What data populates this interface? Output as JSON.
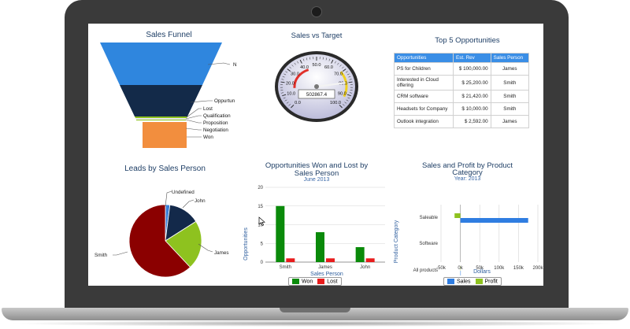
{
  "colors": {
    "frame": "#3a3a3a",
    "won": "#0a8a0a",
    "lost": "#e81c1c",
    "sales": "#2f7de1",
    "profit": "#8ec21f",
    "funnel": [
      "#2f86de",
      "#132a49",
      "#8ec21f",
      "#e8e8ee",
      "#8ec21f",
      "#f28e3e"
    ],
    "pie": [
      "#3b7fd6",
      "#13294a",
      "#8ec21f",
      "#8b0000"
    ]
  },
  "funnel": {
    "title": "Sales Funnel",
    "labels": [
      "N",
      "Oppurtun",
      "Lost",
      "Qualification",
      "Proposition",
      "Negotiation",
      "Won"
    ]
  },
  "gauge": {
    "title": "Sales vs Target",
    "ticks": [
      "0.0",
      "10.0",
      "20.0",
      "30.0",
      "40.0",
      "50.0",
      "60.0",
      "70.0",
      "80.0",
      "90.0",
      "100.0"
    ],
    "readout": "502867.4",
    "value_percent": 80
  },
  "opportunities": {
    "title": "Top 5 Opportunities",
    "columns": [
      "Opportunities",
      "Est. Rev",
      "Sales Person"
    ],
    "rows": [
      [
        "PS for Children",
        "$ 100,000.00",
        "James"
      ],
      [
        "Interested in Cloud offering",
        "$ 25,200.00",
        "Smith"
      ],
      [
        "CRM software",
        "$ 21,420.00",
        "Smith"
      ],
      [
        "Headsets for Company",
        "$ 10,000.00",
        "Smith"
      ],
      [
        "Outlook integration",
        "$ 2,592.00",
        "James"
      ]
    ]
  },
  "leads": {
    "title": "Leads by Sales Person",
    "chart_data": {
      "type": "pie",
      "categories": [
        "Undefined",
        "John",
        "James",
        "Smith"
      ],
      "values": [
        2,
        14,
        22,
        62
      ]
    }
  },
  "wonlost": {
    "title_line1": "Opportunities Won and Lost by",
    "title_line2": "Sales Person",
    "subtitle": "June 2013",
    "ylabel": "Opportunities",
    "xlabel": "Sales Person",
    "legend": [
      "Won",
      "Lost"
    ],
    "chart_data": {
      "type": "bar",
      "categories": [
        "Smith",
        "James",
        "John"
      ],
      "series": [
        {
          "name": "Won",
          "values": [
            15,
            8,
            4
          ]
        },
        {
          "name": "Lost",
          "values": [
            1,
            1,
            1
          ]
        }
      ],
      "ylim": [
        0,
        20
      ],
      "yticks": [
        "0",
        "5",
        "10",
        "15",
        "20"
      ]
    }
  },
  "salesprofit": {
    "title_line1": "Sales and Profit by Product",
    "title_line2": "Category",
    "subtitle": "Year: 2013",
    "ylabel": "Product Category",
    "xlabel": "Dollars",
    "legend": [
      "Sales",
      "Profit"
    ],
    "chart_data": {
      "type": "bar",
      "categories": [
        "Saleable",
        "Software",
        "All products"
      ],
      "series": [
        {
          "name": "Sales",
          "values": [
            175000,
            0,
            1000
          ]
        },
        {
          "name": "Profit",
          "values": [
            -15000,
            0,
            500
          ]
        }
      ],
      "xlim": [
        -50000,
        200000
      ],
      "xticks": [
        "-50k",
        "0k",
        "50k",
        "100k",
        "150k",
        "200k"
      ]
    }
  }
}
